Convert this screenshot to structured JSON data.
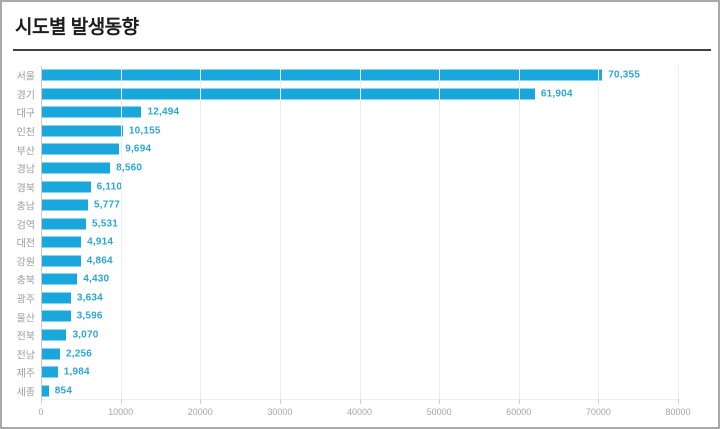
{
  "header": {
    "title": "시도별 발생동향"
  },
  "colors": {
    "bar": "#1aa8dc",
    "value_label": "#2ea6d6",
    "category_label": "#9b9b9b",
    "axis_tick_label": "#a5a5a5",
    "gridline": "#ededed",
    "axis_line": "#c9c9c9",
    "title_text": "#1c1c1e",
    "title_underline": "#414141",
    "frame_border": "#a9a9a9",
    "background": "#ffffff"
  },
  "chart_data": {
    "type": "bar",
    "orientation": "horizontal",
    "title": "시도별 발생동향",
    "xlabel": "",
    "ylabel": "",
    "categories": [
      "서울",
      "경기",
      "대구",
      "인천",
      "부산",
      "경남",
      "경북",
      "충남",
      "검역",
      "대전",
      "강원",
      "충북",
      "광주",
      "울산",
      "전북",
      "전남",
      "제주",
      "세종"
    ],
    "values": [
      70355,
      61904,
      12494,
      10155,
      9694,
      8560,
      6110,
      5777,
      5531,
      4914,
      4864,
      4430,
      3634,
      3596,
      3070,
      2256,
      1984,
      854
    ],
    "value_labels": [
      "70,355",
      "61,904",
      "12,494",
      "10,155",
      "9,694",
      "8,560",
      "6,110",
      "5,777",
      "5,531",
      "4,914",
      "4,864",
      "4,430",
      "3,634",
      "3,596",
      "3,070",
      "2,256",
      "1,984",
      "854"
    ],
    "xlim": [
      0,
      80000
    ],
    "x_ticks": [
      0,
      10000,
      20000,
      30000,
      40000,
      50000,
      60000,
      70000,
      80000
    ],
    "x_tick_labels": [
      "0",
      "10000",
      "20000",
      "30000",
      "40000",
      "50000",
      "60000",
      "70000",
      "80000"
    ],
    "grid": true,
    "legend": false,
    "bar_color": "#1aa8dc"
  }
}
